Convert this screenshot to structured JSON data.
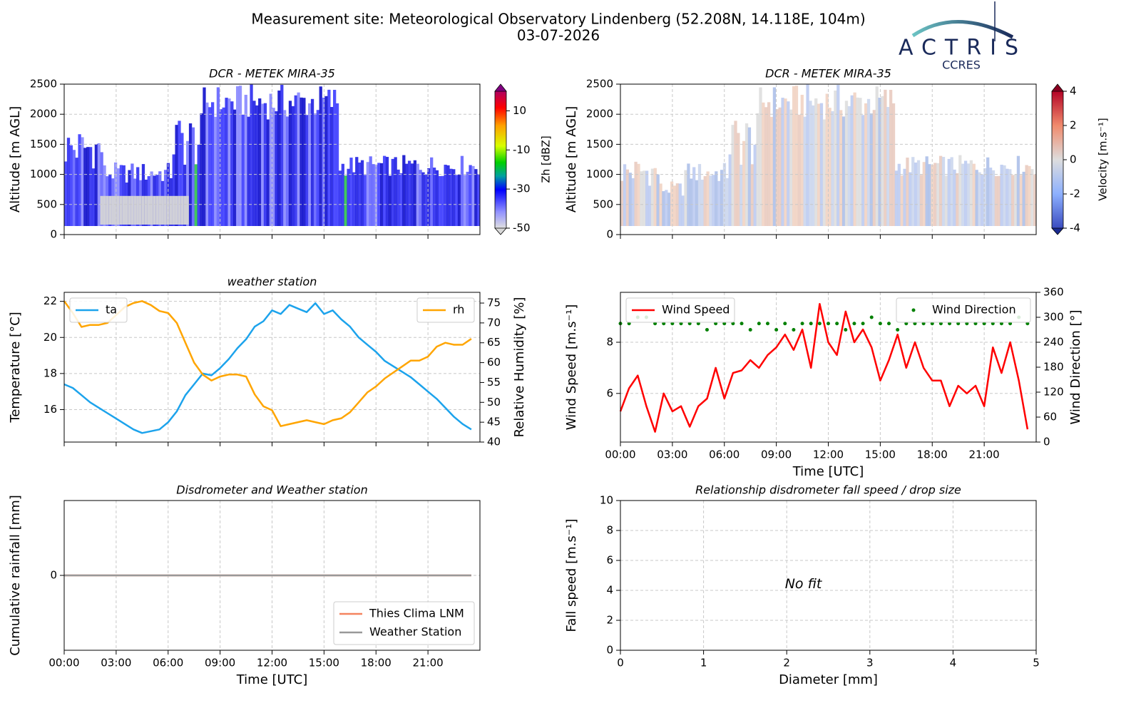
{
  "title": "Measurement site: Meteorological Observatory Lindenberg (52.208N, 14.118E, 104m)",
  "date": "03-07-2026",
  "logo": {
    "name": "ACTRIS",
    "subtitle": "CCRES"
  },
  "chart_data": [
    {
      "type": "heatmap",
      "title": "DCR - METEK MIRA-35",
      "ylabel": "Altitude [m AGL]",
      "xlim": [
        0,
        24
      ],
      "xticks": [
        0,
        3,
        6,
        9,
        12,
        15,
        18,
        21
      ],
      "xticklabels": false,
      "ylim": [
        0,
        2500
      ],
      "yticks": [
        0,
        500,
        1000,
        1500,
        2000,
        2500
      ],
      "grid": true,
      "colorbar": {
        "label": "Zh [dBZ]",
        "lim": [
          -50,
          20
        ],
        "ticks": [
          -50,
          -30,
          -10,
          10
        ]
      }
    },
    {
      "type": "heatmap",
      "title": "DCR - METEK MIRA-35",
      "ylabel": "Altitude [m AGL]",
      "xlim": [
        0,
        24
      ],
      "xticks": [
        0,
        3,
        6,
        9,
        12,
        15,
        18,
        21
      ],
      "xticklabels": false,
      "ylim": [
        0,
        2500
      ],
      "yticks": [
        0,
        500,
        1000,
        1500,
        2000,
        2500
      ],
      "grid": true,
      "colorbar": {
        "label": "Velocity [m.s⁻¹]",
        "lim": [
          -4,
          4
        ],
        "ticks": [
          -4,
          -2,
          0,
          2,
          4
        ]
      }
    },
    {
      "type": "line",
      "title": "weather station",
      "ylabel": "Temperature [°C]",
      "y2label": "Relative Humidity [%]",
      "xlim": [
        0,
        24
      ],
      "xticks": [
        0,
        3,
        6,
        9,
        12,
        15,
        18,
        21
      ],
      "xticklabels": false,
      "ylim": [
        14.2,
        22.5
      ],
      "yticks": [
        16,
        18,
        20,
        22
      ],
      "y2lim": [
        40,
        77.7
      ],
      "y2ticks": [
        40,
        45,
        50,
        55,
        60,
        65,
        70,
        75
      ],
      "grid": true,
      "x": [
        0,
        0.5,
        1,
        1.5,
        2,
        2.5,
        3,
        3.5,
        4,
        4.5,
        5,
        5.5,
        6,
        6.5,
        7,
        7.5,
        8,
        8.5,
        9,
        9.5,
        10,
        10.5,
        11,
        11.5,
        12,
        12.5,
        13,
        13.5,
        14,
        14.5,
        15,
        15.5,
        16,
        16.5,
        17,
        17.5,
        18,
        18.5,
        19,
        19.5,
        20,
        20.5,
        21,
        21.5,
        22,
        22.5,
        23,
        23.5
      ],
      "series": [
        {
          "name": "ta",
          "color": "#1ca3ec",
          "legend": "upper left",
          "values": [
            17.4,
            17.2,
            16.8,
            16.4,
            16.1,
            15.8,
            15.5,
            15.2,
            14.9,
            14.7,
            14.8,
            14.9,
            15.3,
            15.9,
            16.8,
            17.4,
            18.0,
            17.9,
            18.3,
            18.8,
            19.4,
            19.9,
            20.6,
            20.9,
            21.5,
            21.3,
            21.8,
            21.6,
            21.4,
            21.9,
            21.3,
            21.5,
            21.0,
            20.6,
            20.0,
            19.6,
            19.2,
            18.7,
            18.4,
            18.1,
            17.8,
            17.4,
            17.0,
            16.6,
            16.1,
            15.6,
            15.2,
            14.9
          ]
        },
        {
          "name": "rh",
          "color": "#ffa500",
          "axis": "y2",
          "legend": "upper right",
          "values": [
            75.5,
            72.5,
            69,
            69.5,
            69.5,
            70,
            72,
            74,
            75,
            75.5,
            74.5,
            73,
            72.5,
            70,
            65,
            60,
            57,
            55.5,
            56.5,
            57,
            57,
            56.5,
            52,
            49,
            48,
            44,
            44.5,
            45,
            45.5,
            45,
            44.5,
            45.5,
            46,
            47.5,
            50,
            52.5,
            54,
            56,
            57.5,
            59,
            60.5,
            60.5,
            61.5,
            64,
            65,
            64.5,
            64.5,
            66
          ]
        }
      ]
    },
    {
      "type": "line",
      "title": "",
      "ylabel": "Wind Speed [m.s⁻¹]",
      "y2label": "Wind Direction [°]",
      "xlabel": "Time [UTC]",
      "xlim": [
        0,
        24
      ],
      "xticks": [
        {
          "value": 0,
          "label": "00:00"
        },
        {
          "value": 3,
          "label": "03:00"
        },
        {
          "value": 6,
          "label": "06:00"
        },
        {
          "value": 9,
          "label": "09:00"
        },
        {
          "value": 12,
          "label": "12:00"
        },
        {
          "value": 15,
          "label": "15:00"
        },
        {
          "value": 18,
          "label": "18:00"
        },
        {
          "value": 21,
          "label": "21:00"
        }
      ],
      "ylim": [
        4.1,
        9.95
      ],
      "yticks": [
        6,
        8
      ],
      "y2lim": [
        0,
        360
      ],
      "y2ticks": [
        0,
        60,
        120,
        180,
        240,
        300,
        360
      ],
      "grid": true,
      "x": [
        0,
        0.5,
        1,
        1.5,
        2,
        2.5,
        3,
        3.5,
        4,
        4.5,
        5,
        5.5,
        6,
        6.5,
        7,
        7.5,
        8,
        8.5,
        9,
        9.5,
        10,
        10.5,
        11,
        11.5,
        12,
        12.5,
        13,
        13.5,
        14,
        14.5,
        15,
        15.5,
        16,
        16.5,
        17,
        17.5,
        18,
        18.5,
        19,
        19.5,
        20,
        20.5,
        21,
        21.5,
        22,
        22.5,
        23,
        23.5
      ],
      "series": [
        {
          "name": "Wind Speed",
          "color": "#ff0000",
          "legend": "upper left",
          "values": [
            5.3,
            6.2,
            6.7,
            5.5,
            4.5,
            6.0,
            5.3,
            5.5,
            4.7,
            5.5,
            5.8,
            7.0,
            5.8,
            6.8,
            6.9,
            7.3,
            7.0,
            7.5,
            7.8,
            8.3,
            7.7,
            8.5,
            7.0,
            9.5,
            8.0,
            7.5,
            9.2,
            8.0,
            8.5,
            7.8,
            6.5,
            7.3,
            8.3,
            7.0,
            8.0,
            7.0,
            6.5,
            6.5,
            5.5,
            6.3,
            6.0,
            6.3,
            5.5,
            7.8,
            6.8,
            8.0,
            6.5,
            4.6
          ]
        },
        {
          "name": "Wind Direction",
          "color": "#008000",
          "axis": "y2",
          "style": "markers",
          "legend": "upper right",
          "values": [
            285,
            285,
            300,
            300,
            285,
            285,
            285,
            285,
            285,
            285,
            270,
            285,
            285,
            285,
            285,
            270,
            285,
            285,
            270,
            285,
            270,
            285,
            285,
            285,
            285,
            285,
            270,
            285,
            285,
            300,
            285,
            285,
            270,
            285,
            285,
            285,
            285,
            285,
            285,
            285,
            285,
            285,
            285,
            285,
            285,
            285,
            300,
            285
          ]
        }
      ]
    },
    {
      "type": "line",
      "title": "Disdrometer and Weather station",
      "ylabel": "Cumulative rainfall [mm]",
      "xlabel": "Time [UTC]",
      "xlim": [
        0,
        24
      ],
      "xticks": [
        {
          "value": 0,
          "label": "00:00"
        },
        {
          "value": 3,
          "label": "03:00"
        },
        {
          "value": 6,
          "label": "06:00"
        },
        {
          "value": 9,
          "label": "09:00"
        },
        {
          "value": 12,
          "label": "12:00"
        },
        {
          "value": 15,
          "label": "15:00"
        },
        {
          "value": 18,
          "label": "18:00"
        },
        {
          "value": 21,
          "label": "21:00"
        }
      ],
      "ylim": [
        -1,
        1
      ],
      "yticks": [
        0
      ],
      "grid": true,
      "legend": "lower right",
      "x": [
        0,
        23.5
      ],
      "series": [
        {
          "name": "Thies Clima LNM",
          "color": "#f4845f",
          "values": [
            0,
            0
          ]
        },
        {
          "name": "Weather Station",
          "color": "#999999",
          "values": [
            0,
            0
          ]
        }
      ]
    },
    {
      "type": "scatter",
      "title": "Relationship disdrometer fall speed / drop size",
      "annotation": "No fit",
      "xlabel": "Diameter [mm]",
      "ylabel": "Fall speed [m.s⁻¹]",
      "xlim": [
        0,
        5
      ],
      "xticks": [
        0,
        1,
        2,
        3,
        4,
        5
      ],
      "ylim": [
        0,
        10
      ],
      "yticks": [
        0,
        2,
        4,
        6,
        8,
        10
      ],
      "grid": true
    }
  ]
}
